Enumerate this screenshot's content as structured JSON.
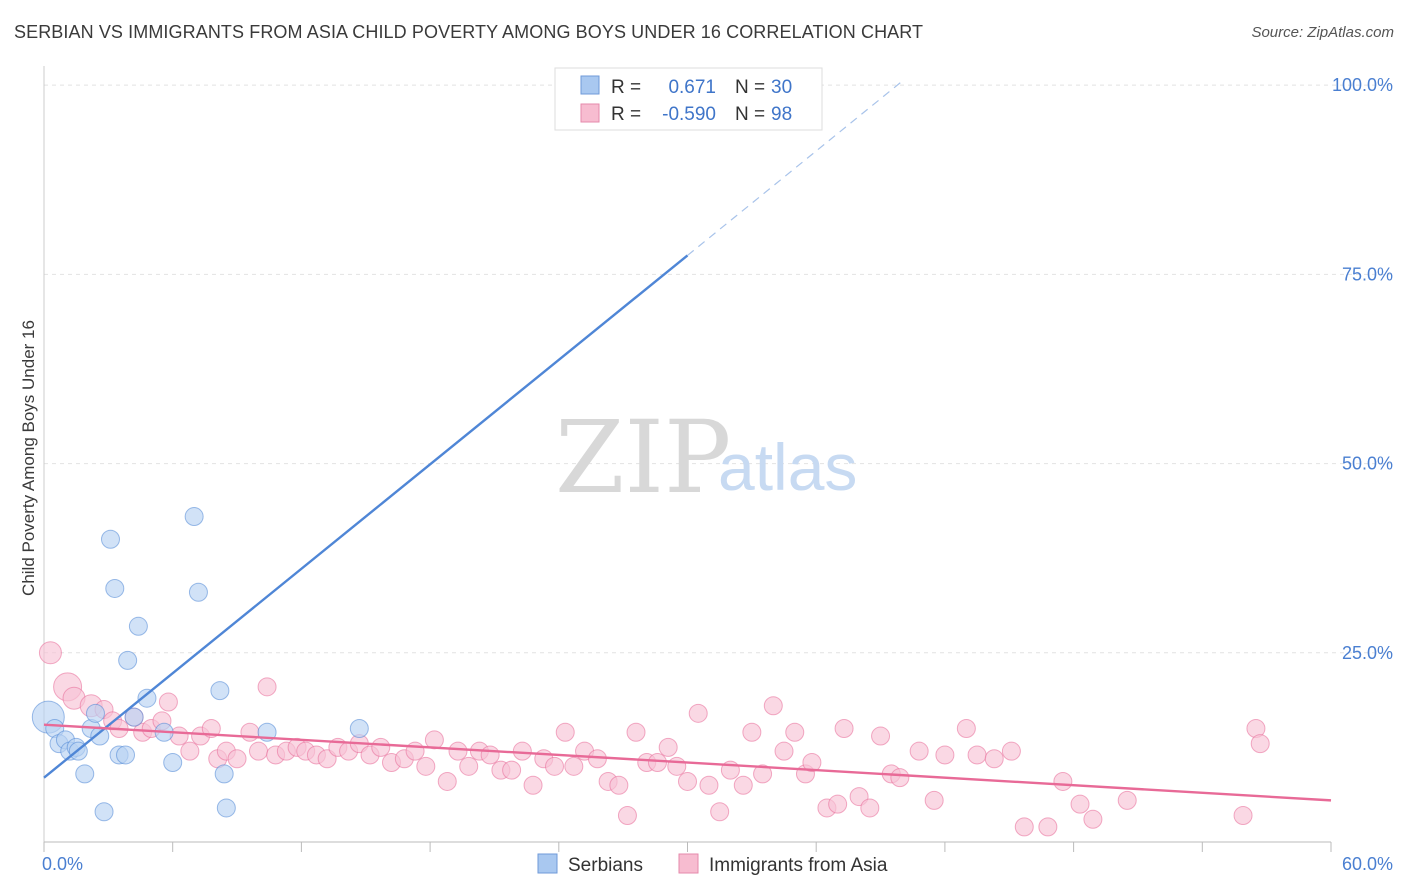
{
  "title": "SERBIAN VS IMMIGRANTS FROM ASIA CHILD POVERTY AMONG BOYS UNDER 16 CORRELATION CHART",
  "source": "Source: ZipAtlas.com",
  "watermark": {
    "zip": "ZIP",
    "atlas": "atlas"
  },
  "stats": [
    {
      "r_label": "R =",
      "r_value": "0.671",
      "n_label": "N =",
      "n_value": "30",
      "color": "#a9c8f0"
    },
    {
      "r_label": "R =",
      "r_value": "-0.590",
      "n_label": "N =",
      "n_value": "98",
      "color": "#f7bcd0"
    }
  ],
  "legend": [
    {
      "label": "Serbians",
      "color": "#a9c8f0"
    },
    {
      "label": "Immigrants from Asia",
      "color": "#f7bcd0"
    }
  ],
  "chart_data": {
    "type": "scatter",
    "ylabel": "Child Poverty Among Boys Under 16",
    "xlim": [
      0,
      60
    ],
    "ylim": [
      0,
      102
    ],
    "x_tick_labels": [
      {
        "value": 0,
        "label": "0.0%"
      },
      {
        "value": 60,
        "label": "60.0%"
      }
    ],
    "y_tick_labels": [
      {
        "value": 25,
        "label": "25.0%"
      },
      {
        "value": 50,
        "label": "50.0%"
      },
      {
        "value": 75,
        "label": "75.0%"
      },
      {
        "value": 100,
        "label": "100.0%"
      }
    ],
    "grid": "horizontal dashed",
    "legend_position": "bottom-center",
    "series": [
      {
        "name": "Serbians",
        "color": "#4f86d6",
        "fill": "#b9d3f3",
        "trend": {
          "x0": 0,
          "y0": 8.5,
          "x1": 30,
          "y1": 77.5,
          "dashed_to_x": 40,
          "dashed_to_y": 100.5
        },
        "points": [
          [
            0.2,
            16.5,
            16
          ],
          [
            0.5,
            15,
            9
          ],
          [
            0.7,
            13,
            9
          ],
          [
            1.0,
            13.5,
            9
          ],
          [
            1.2,
            12,
            9
          ],
          [
            1.5,
            12.5,
            9
          ],
          [
            1.6,
            12,
            9
          ],
          [
            1.9,
            9,
            9
          ],
          [
            2.2,
            15,
            9
          ],
          [
            2.4,
            17,
            9
          ],
          [
            2.6,
            14,
            9
          ],
          [
            2.8,
            4,
            9
          ],
          [
            3.1,
            40,
            9
          ],
          [
            3.3,
            33.5,
            9
          ],
          [
            3.5,
            11.5,
            9
          ],
          [
            3.8,
            11.5,
            9
          ],
          [
            3.9,
            24,
            9
          ],
          [
            4.2,
            16.5,
            9
          ],
          [
            4.4,
            28.5,
            9
          ],
          [
            4.8,
            19,
            9
          ],
          [
            5.6,
            14.5,
            9
          ],
          [
            6.0,
            10.5,
            9
          ],
          [
            7.0,
            43,
            9
          ],
          [
            7.2,
            33,
            9
          ],
          [
            8.2,
            20,
            9
          ],
          [
            8.4,
            9,
            9
          ],
          [
            8.5,
            4.5,
            9
          ],
          [
            10.4,
            14.5,
            9
          ],
          [
            14.7,
            15,
            9
          ],
          [
            26.0,
            100,
            9
          ]
        ]
      },
      {
        "name": "Immigrants from Asia",
        "color": "#e86a97",
        "fill": "#f8c3d5",
        "trend": {
          "x0": 0,
          "y0": 15.5,
          "x1": 60,
          "y1": 5.5
        },
        "points": [
          [
            0.3,
            25,
            11
          ],
          [
            1.1,
            20.5,
            14
          ],
          [
            1.4,
            19,
            11
          ],
          [
            2.2,
            18,
            11
          ],
          [
            2.8,
            17.5,
            9
          ],
          [
            3.2,
            16,
            9
          ],
          [
            3.5,
            15,
            9
          ],
          [
            4.2,
            16.5,
            9
          ],
          [
            4.6,
            14.5,
            9
          ],
          [
            5.0,
            15,
            9
          ],
          [
            5.5,
            16,
            9
          ],
          [
            5.8,
            18.5,
            9
          ],
          [
            6.3,
            14,
            9
          ],
          [
            6.8,
            12,
            9
          ],
          [
            7.3,
            14,
            9
          ],
          [
            7.8,
            15,
            9
          ],
          [
            8.1,
            11,
            9
          ],
          [
            8.5,
            12,
            9
          ],
          [
            9.0,
            11,
            9
          ],
          [
            9.6,
            14.5,
            9
          ],
          [
            10.0,
            12,
            9
          ],
          [
            10.4,
            20.5,
            9
          ],
          [
            10.8,
            11.5,
            9
          ],
          [
            11.3,
            12,
            9
          ],
          [
            11.8,
            12.5,
            9
          ],
          [
            12.2,
            12,
            9
          ],
          [
            12.7,
            11.5,
            9
          ],
          [
            13.2,
            11,
            9
          ],
          [
            13.7,
            12.5,
            9
          ],
          [
            14.2,
            12,
            9
          ],
          [
            14.7,
            13,
            9
          ],
          [
            15.2,
            11.5,
            9
          ],
          [
            15.7,
            12.5,
            9
          ],
          [
            16.2,
            10.5,
            9
          ],
          [
            16.8,
            11,
            9
          ],
          [
            17.3,
            12,
            9
          ],
          [
            17.8,
            10,
            9
          ],
          [
            18.2,
            13.5,
            9
          ],
          [
            18.8,
            8,
            9
          ],
          [
            19.3,
            12,
            9
          ],
          [
            19.8,
            10,
            9
          ],
          [
            20.3,
            12,
            9
          ],
          [
            20.8,
            11.5,
            9
          ],
          [
            21.3,
            9.5,
            9
          ],
          [
            21.8,
            9.5,
            9
          ],
          [
            22.3,
            12,
            9
          ],
          [
            22.8,
            7.5,
            9
          ],
          [
            23.3,
            11,
            9
          ],
          [
            23.8,
            10,
            9
          ],
          [
            24.3,
            14.5,
            9
          ],
          [
            24.7,
            10,
            9
          ],
          [
            25.2,
            12,
            9
          ],
          [
            25.8,
            11,
            9
          ],
          [
            26.3,
            8,
            9
          ],
          [
            26.8,
            7.5,
            9
          ],
          [
            27.2,
            3.5,
            9
          ],
          [
            27.6,
            14.5,
            9
          ],
          [
            28.1,
            10.5,
            9
          ],
          [
            28.6,
            10.5,
            9
          ],
          [
            29.1,
            12.5,
            9
          ],
          [
            29.5,
            10,
            9
          ],
          [
            30.0,
            8,
            9
          ],
          [
            30.5,
            17,
            9
          ],
          [
            31.0,
            7.5,
            9
          ],
          [
            31.5,
            4,
            9
          ],
          [
            32.0,
            9.5,
            9
          ],
          [
            32.6,
            7.5,
            9
          ],
          [
            33.0,
            14.5,
            9
          ],
          [
            33.5,
            9,
            9
          ],
          [
            34.0,
            18,
            9
          ],
          [
            34.5,
            12,
            9
          ],
          [
            35.0,
            14.5,
            9
          ],
          [
            35.5,
            9,
            9
          ],
          [
            35.8,
            10.5,
            9
          ],
          [
            36.5,
            4.5,
            9
          ],
          [
            37.0,
            5,
            9
          ],
          [
            37.3,
            15,
            9
          ],
          [
            38.0,
            6,
            9
          ],
          [
            38.5,
            4.5,
            9
          ],
          [
            39.0,
            14,
            9
          ],
          [
            39.5,
            9,
            9
          ],
          [
            39.9,
            8.5,
            9
          ],
          [
            40.8,
            12,
            9
          ],
          [
            41.5,
            5.5,
            9
          ],
          [
            42.0,
            11.5,
            9
          ],
          [
            43.0,
            15,
            9
          ],
          [
            43.5,
            11.5,
            9
          ],
          [
            44.3,
            11,
            9
          ],
          [
            45.1,
            12,
            9
          ],
          [
            45.7,
            2,
            9
          ],
          [
            46.8,
            2,
            9
          ],
          [
            47.5,
            8,
            9
          ],
          [
            48.3,
            5,
            9
          ],
          [
            48.9,
            3,
            9
          ],
          [
            50.5,
            5.5,
            9
          ],
          [
            55.9,
            3.5,
            9
          ],
          [
            56.5,
            15,
            9
          ],
          [
            56.7,
            13,
            9
          ]
        ]
      }
    ]
  }
}
